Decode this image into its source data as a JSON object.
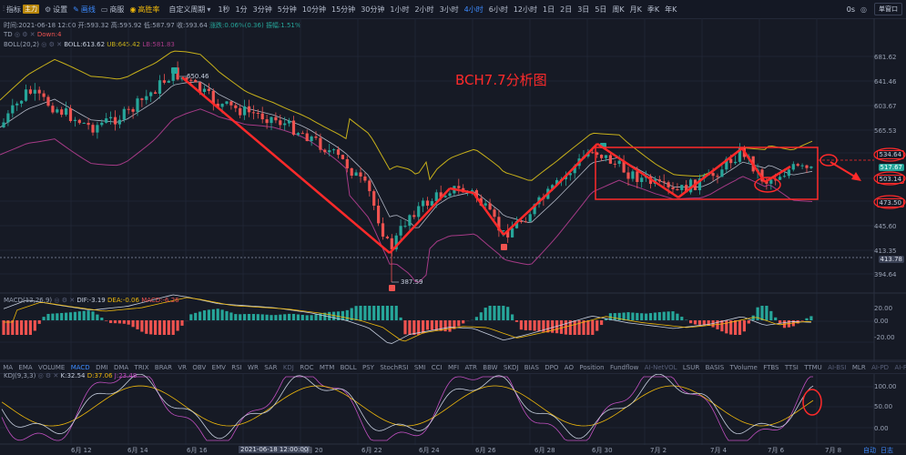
{
  "toolbar": {
    "indicator": "指标",
    "indicator_badge": "主力",
    "settings": "设置",
    "drawing": "画线",
    "layout": "商服",
    "winrate": "高胜率",
    "custom_period": "自定义周期",
    "periods": [
      "1秒",
      "1分",
      "3分钟",
      "5分钟",
      "10分钟",
      "15分钟",
      "30分钟",
      "1小时",
      "2小时",
      "3小时",
      "4小时",
      "6小时",
      "12小时",
      "1日",
      "2日",
      "3日",
      "5日",
      "周K",
      "月K",
      "季K",
      "年K"
    ],
    "active_period": "4小时",
    "right_a": "0s",
    "right_b": "单窗口"
  },
  "ohlc": {
    "time": "时间:2021-06-18 12:00",
    "open": "开:593.32",
    "high": "高:596.92",
    "low": "低:587.97",
    "close": "收:593.64",
    "change": "涨跌:0.06%(0.36)",
    "amplitude": "振幅:1.51%"
  },
  "td": {
    "name": "TD",
    "down": "Down:4"
  },
  "boll": {
    "name": "BOLL(20,2)",
    "boll": "BOLL:613.62",
    "ub": "UB:645.42",
    "lb": "LB:581.83"
  },
  "annotation": "BCH7.7分析图",
  "price_labels": {
    "high": "650.46",
    "low": "387.59"
  },
  "price_axis": [
    "681.62",
    "641.46",
    "603.67",
    "565.53",
    "534.64",
    "517.67",
    "503.14",
    "473.50",
    "445.60",
    "413.35",
    "413.78",
    "394.64"
  ],
  "macd": {
    "name": "MACD(12,26,9)",
    "dif": "DIF:-3.19",
    "dea": "DEA:-0.06",
    "macd": "MACD:-6.26",
    "axis": [
      "20.00",
      "0.00",
      "-20.00"
    ]
  },
  "kdj": {
    "name": "KDJ(9,3,3)",
    "k": "K:32.54",
    "d": "D:37.06",
    "j": "J:23.48",
    "axis": [
      "100.00",
      "50.00",
      "0.00"
    ]
  },
  "indicators": [
    "MA",
    "EMA",
    "VOLUME",
    "MACD",
    "DMI",
    "DMA",
    "TRIX",
    "BRAR",
    "VR",
    "OBV",
    "EMV",
    "RSI",
    "WR",
    "SAR",
    "KDJ",
    "ROC",
    "MTM",
    "BOLL",
    "PSY",
    "StochRSI",
    "SMI",
    "CCI",
    "MFI",
    "ATR",
    "BBW",
    "SKDJ",
    "BIAS",
    "DPO",
    "AO",
    "Position",
    "Fundflow",
    "AI-NetVOL",
    "LSUR",
    "BASIS",
    "TVolume",
    "FTBS",
    "TTSI",
    "TTMU",
    "AI-BSI",
    "MLR",
    "AI-PD",
    "AI-FDI",
    "AI-LI",
    "FR",
    "PFR",
    "AI-BST",
    "AI-CMLSI"
  ],
  "indicators_active": "MACD",
  "xaxis": [
    "6月 12",
    "6月 14",
    "6月 16",
    "2021-06-18 12:00:00",
    "6月 20",
    "6月 22",
    "6月 24",
    "6月 26",
    "6月 28",
    "6月 30",
    "7月 2",
    "7月 4",
    "7月 6",
    "7月 8"
  ],
  "xaxis_right": [
    "自动",
    "日志"
  ],
  "colors": {
    "up": "#26a69a",
    "down": "#ef5350",
    "annotation": "#ff2a2a",
    "boll_upper": "#c7b01a",
    "boll_mid": "#b0b6c4",
    "boll_lower": "#a53a86"
  }
}
